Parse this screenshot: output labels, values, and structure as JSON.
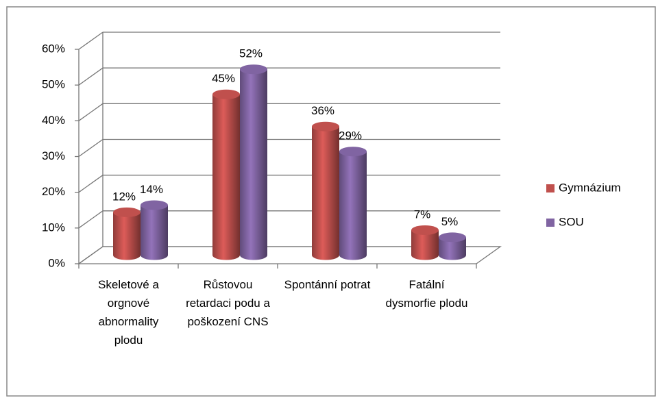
{
  "chart_data": {
    "type": "bar3d",
    "categories": [
      "Skeletové a orgnové abnormality plodu",
      "Růstovou retardaci podu a poškození CNS",
      "Spontánní potrat",
      "Fatální dysmorfie plodu"
    ],
    "series": [
      {
        "name": "Gymnázium",
        "color": "#c0504d",
        "values": [
          12,
          45,
          36,
          7
        ],
        "value_labels": [
          "12%",
          "45%",
          "36%",
          "7%"
        ]
      },
      {
        "name": "SOU",
        "color": "#8064a2",
        "values": [
          14,
          52,
          29,
          5
        ],
        "value_labels": [
          "14%",
          "52%",
          "29%",
          "5%"
        ]
      }
    ],
    "ylim": [
      0,
      60
    ],
    "yticks": [
      {
        "value": 0,
        "label": "0%"
      },
      {
        "value": 10,
        "label": "10%"
      },
      {
        "value": 20,
        "label": "20%"
      },
      {
        "value": 30,
        "label": "30%"
      },
      {
        "value": 40,
        "label": "40%"
      },
      {
        "value": 50,
        "label": "50%"
      },
      {
        "value": 60,
        "label": "60%"
      }
    ],
    "grid": true,
    "legend": "right"
  }
}
